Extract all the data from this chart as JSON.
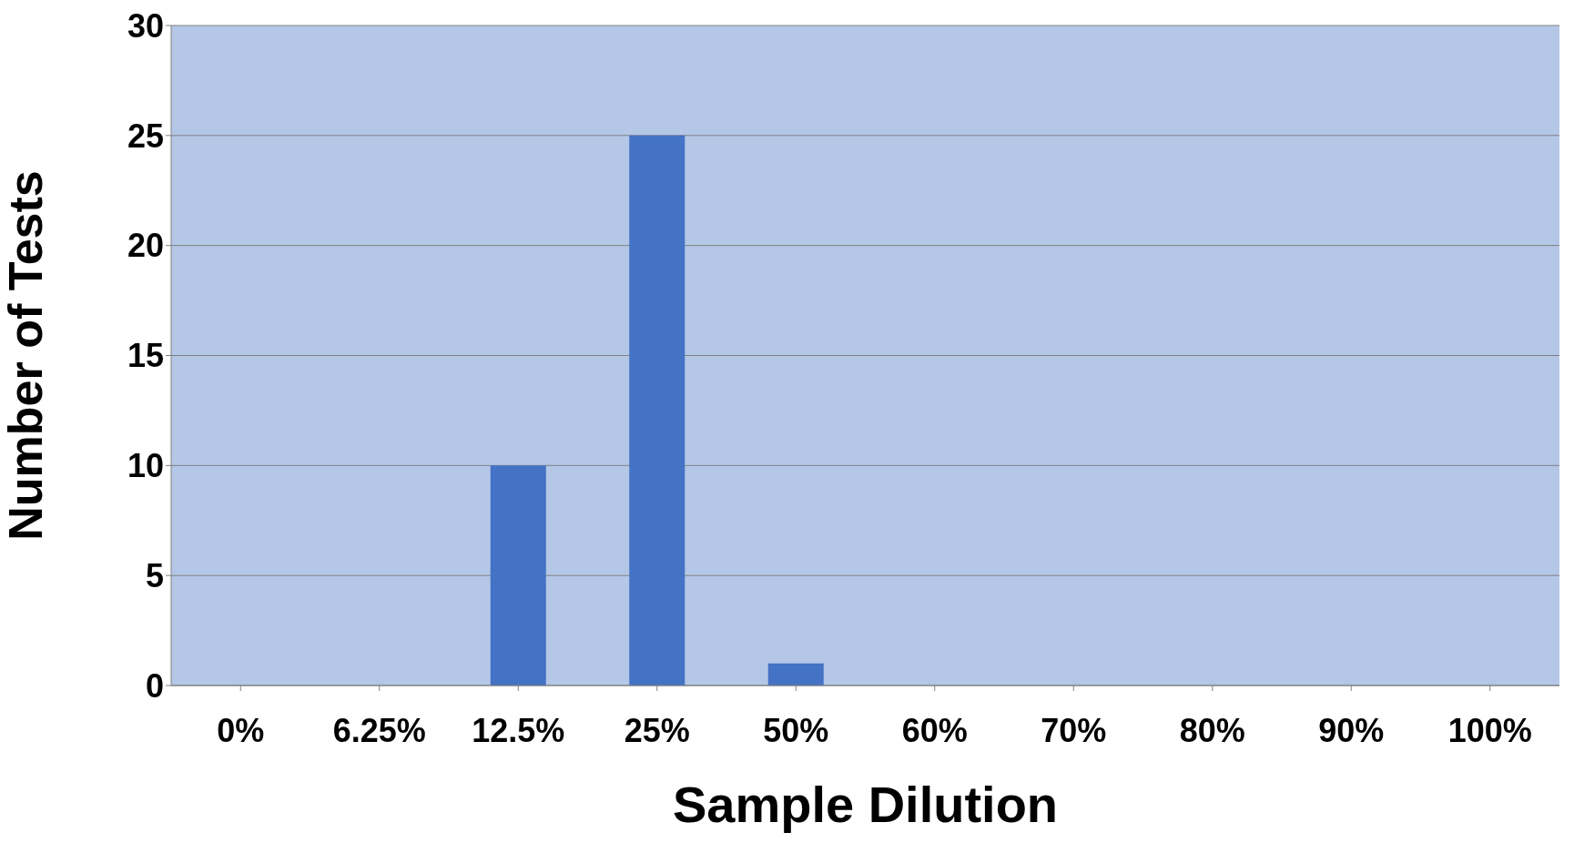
{
  "chart_data": {
    "type": "bar",
    "xlabel": "Sample Dilution",
    "ylabel": "Number of Tests",
    "categories": [
      "0%",
      "6.25%",
      "12.5%",
      "25%",
      "50%",
      "60%",
      "70%",
      "80%",
      "90%",
      "100%"
    ],
    "values": [
      0,
      0,
      10,
      25,
      1,
      0,
      0,
      0,
      0,
      0
    ],
    "color": "#4472c4",
    "ylim": [
      0,
      30
    ],
    "yticks": [
      0,
      5,
      10,
      15,
      20,
      25,
      30
    ],
    "grid": "y"
  }
}
